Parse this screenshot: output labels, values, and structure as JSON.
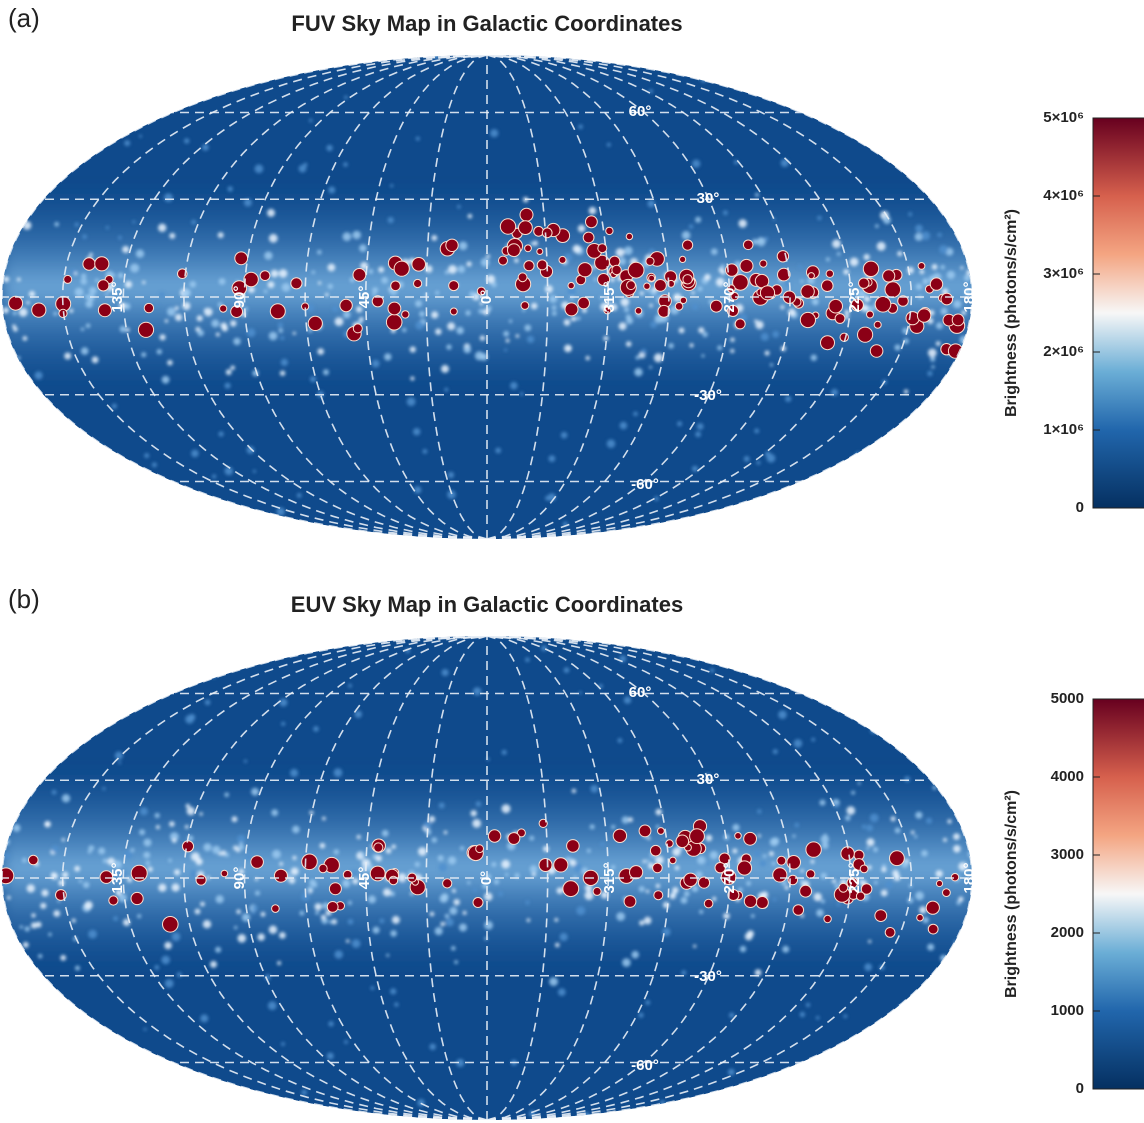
{
  "panels": [
    {
      "label": "(a)",
      "title": "FUV Sky Map in Galactic Coordinates",
      "latitude_labels": [
        "60°",
        "30°",
        "-30°",
        "-60°"
      ],
      "longitude_labels": [
        "135°",
        "90°",
        "45°",
        "0°",
        "315°",
        "270°",
        "225°",
        "180°"
      ],
      "colorbar": {
        "label": "Brightness (photons/s/cm²)",
        "lim": [
          0,
          5000000
        ],
        "ticks": [
          0,
          {
            "value": 1000000,
            "label": "1×10⁶"
          },
          {
            "value": 2000000,
            "label": "2×10⁶"
          },
          {
            "value": 3000000,
            "label": "3×10⁶"
          },
          {
            "value": 4000000,
            "label": "4×10⁶"
          },
          {
            "value": 5000000,
            "label": "5×10⁶"
          }
        ]
      }
    },
    {
      "label": "(b)",
      "title": "EUV Sky Map in Galactic Coordinates",
      "latitude_labels": [
        "60°",
        "30°",
        "-30°",
        "-60°"
      ],
      "longitude_labels": [
        "135°",
        "90°",
        "45°",
        "0°",
        "315°",
        "270°",
        "225°",
        "180°"
      ],
      "colorbar": {
        "label": "Brightness (photons/s/cm²)",
        "lim": [
          0,
          5000
        ],
        "ticks": [
          0,
          1000,
          2000,
          3000,
          4000,
          5000
        ]
      }
    }
  ]
}
